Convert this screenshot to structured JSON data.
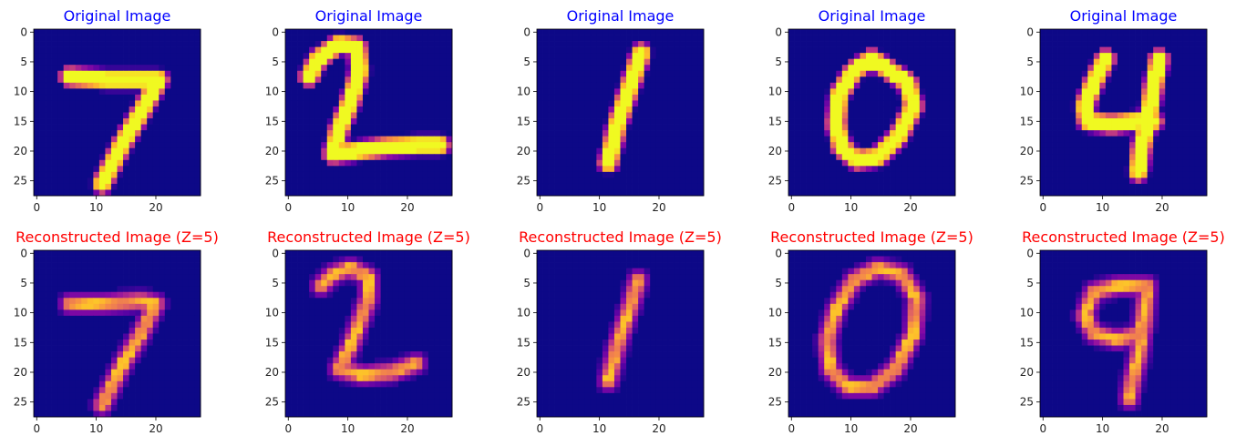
{
  "chart_data": {
    "type": "heatmap",
    "colormap": "plasma",
    "image_size": [
      28,
      28
    ],
    "xticks": [
      0,
      10,
      20
    ],
    "yticks": [
      0,
      5,
      10,
      15,
      20,
      25
    ],
    "xlim": [
      -0.5,
      27.5
    ],
    "ylim": [
      27.5,
      -0.5
    ],
    "title_colors": {
      "original": "#0000ff",
      "reconstructed": "#ff0000"
    },
    "panels": [
      {
        "row": 0,
        "col": 0,
        "title": "Original Image",
        "digit": "7",
        "kind": "original"
      },
      {
        "row": 0,
        "col": 1,
        "title": "Original Image",
        "digit": "2",
        "kind": "original"
      },
      {
        "row": 0,
        "col": 2,
        "title": "Original Image",
        "digit": "1",
        "kind": "original"
      },
      {
        "row": 0,
        "col": 3,
        "title": "Original Image",
        "digit": "0",
        "kind": "original"
      },
      {
        "row": 0,
        "col": 4,
        "title": "Original Image",
        "digit": "4",
        "kind": "original"
      },
      {
        "row": 1,
        "col": 0,
        "title": "Reconstructed Image (Z=5)",
        "digit": "7",
        "kind": "reconstructed"
      },
      {
        "row": 1,
        "col": 1,
        "title": "Reconstructed Image (Z=5)",
        "digit": "2",
        "kind": "reconstructed"
      },
      {
        "row": 1,
        "col": 2,
        "title": "Reconstructed Image (Z=5)",
        "digit": "1",
        "kind": "reconstructed"
      },
      {
        "row": 1,
        "col": 3,
        "title": "Reconstructed Image (Z=5)",
        "digit": "0",
        "kind": "reconstructed"
      },
      {
        "row": 1,
        "col": 4,
        "title": "Reconstructed Image (Z=5)",
        "digit": "9",
        "kind": "reconstructed"
      }
    ]
  }
}
